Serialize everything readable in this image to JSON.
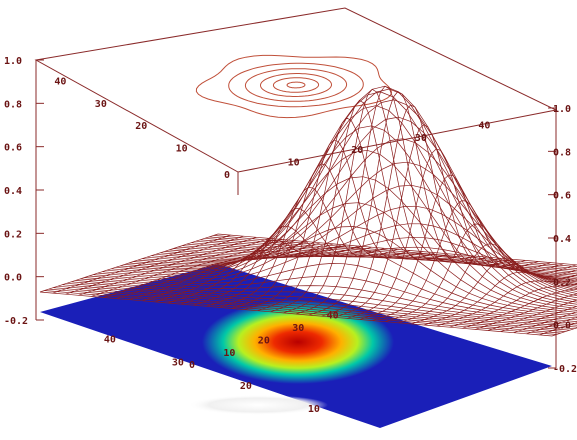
{
  "chart_data": {
    "type": "surface-3d",
    "title": "",
    "xlabel": "",
    "ylabel": "",
    "zlabel": "",
    "x_range": [
      0,
      50
    ],
    "y_range": [
      0,
      50
    ],
    "z_range": [
      -0.2,
      1.0
    ],
    "z_ticks": [
      "-0.2",
      "0.0",
      "0.2",
      "0.4",
      "0.6",
      "0.8",
      "1.0"
    ],
    "z_ticks_right": [
      "-0.2",
      "0.0",
      "0.2",
      "0.4",
      "0.6",
      "0.8",
      "1.0"
    ],
    "x_ticks": [
      "0",
      "10",
      "20",
      "30",
      "40"
    ],
    "y_ticks": [
      "10",
      "20",
      "30",
      "40"
    ],
    "x_ticks_floor": [
      "0",
      "10",
      "20",
      "30",
      "40"
    ],
    "y_ticks_floor": [
      "10",
      "20",
      "30",
      "40"
    ],
    "peak": {
      "x": 25,
      "y": 25,
      "z": 0.97
    },
    "projections": [
      "wireframe-surface",
      "contour-top",
      "color-shaded-floor"
    ],
    "contour_levels": [
      0.1,
      0.3,
      0.5,
      0.7,
      0.85,
      0.95
    ],
    "colors": {
      "wire": "#8a1d1d",
      "contour": "#c0503a",
      "axis": "#8a2a2a",
      "floor_low": "#1a1fb8",
      "floor_high": "#c80000"
    }
  }
}
